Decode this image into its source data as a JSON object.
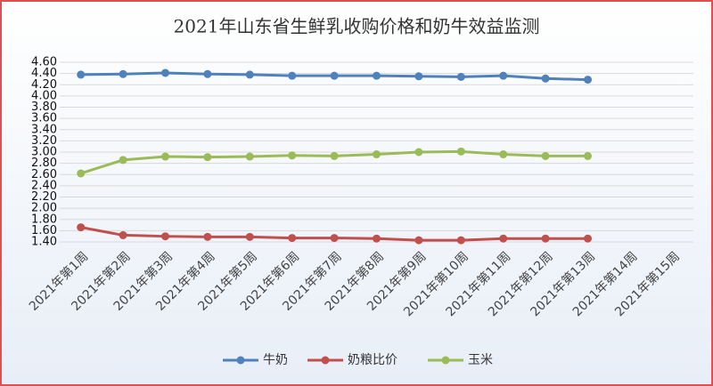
{
  "chart_data": {
    "type": "line",
    "title": "2021年山东省生鲜乳收购价格和奶牛效益监测",
    "categories": [
      "2021年第1周",
      "2021年第2周",
      "2021年第3周",
      "2021年第4周",
      "2021年第5周",
      "2021年第6周",
      "2021年第7周",
      "2021年第8周",
      "2021年第9周",
      "2021年第10周",
      "2021年第11周",
      "2021年第12周",
      "2021年第13周",
      "2021年第14周",
      "2021年第15周"
    ],
    "series": [
      {
        "name": "牛奶",
        "color": "#4f81bd",
        "values": [
          4.38,
          4.39,
          4.41,
          4.39,
          4.38,
          4.36,
          4.36,
          4.36,
          4.35,
          4.34,
          4.36,
          4.31,
          4.29,
          null,
          null
        ]
      },
      {
        "name": "奶粮比价",
        "color": "#c0504d",
        "values": [
          1.66,
          1.52,
          1.5,
          1.49,
          1.49,
          1.47,
          1.47,
          1.46,
          1.43,
          1.43,
          1.46,
          1.46,
          1.46,
          null,
          null
        ]
      },
      {
        "name": "玉米",
        "color": "#9bbb59",
        "values": [
          2.62,
          2.86,
          2.92,
          2.91,
          2.92,
          2.94,
          2.93,
          2.96,
          3.0,
          3.01,
          2.96,
          2.93,
          2.93,
          null,
          null
        ]
      }
    ],
    "ylim": [
      1.4,
      4.6
    ],
    "yticks": [
      {
        "value": 1.4,
        "label": "1.40"
      },
      {
        "value": 1.6,
        "label": "1.60"
      },
      {
        "value": 1.8,
        "label": "1.80"
      },
      {
        "value": 2.0,
        "label": "2.00"
      },
      {
        "value": 2.2,
        "label": "2.20"
      },
      {
        "value": 2.4,
        "label": "2.40"
      },
      {
        "value": 2.6,
        "label": "2.60"
      },
      {
        "value": 2.8,
        "label": "2.80"
      },
      {
        "value": 3.0,
        "label": "3.00"
      },
      {
        "value": 3.2,
        "label": "3.20"
      },
      {
        "value": 3.4,
        "label": "3.40"
      },
      {
        "value": 3.6,
        "label": "3.60"
      },
      {
        "value": 3.8,
        "label": "3.80"
      },
      {
        "value": 4.0,
        "label": "4.00"
      },
      {
        "value": 4.2,
        "label": "4.20"
      },
      {
        "value": 4.4,
        "label": "4.40"
      },
      {
        "value": 4.6,
        "label": "4.60"
      }
    ],
    "grid": true,
    "legend": "bottom"
  }
}
